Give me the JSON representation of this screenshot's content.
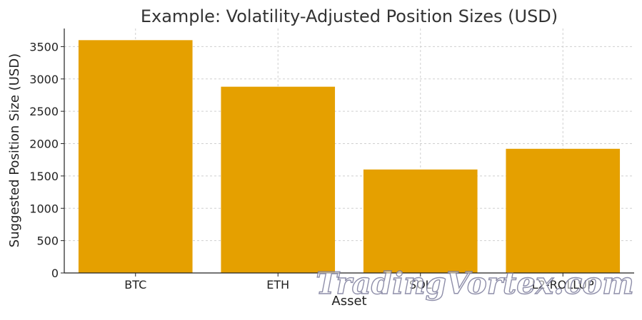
{
  "chart_data": {
    "type": "bar",
    "title": "Example: Volatility-Adjusted Position Sizes (USD)",
    "xlabel": "Asset",
    "ylabel": "Suggested Position Size (USD)",
    "categories": [
      "BTC",
      "ETH",
      "SOL",
      "L2-ROLLUP"
    ],
    "values": [
      3600,
      2880,
      1600,
      1920
    ],
    "ylim": [
      0,
      3780
    ],
    "yticks": [
      0,
      500,
      1000,
      1500,
      2000,
      2500,
      3000,
      3500
    ],
    "grid": true,
    "bar_color": "#e5a000"
  },
  "watermark": "TradingVortex.com"
}
